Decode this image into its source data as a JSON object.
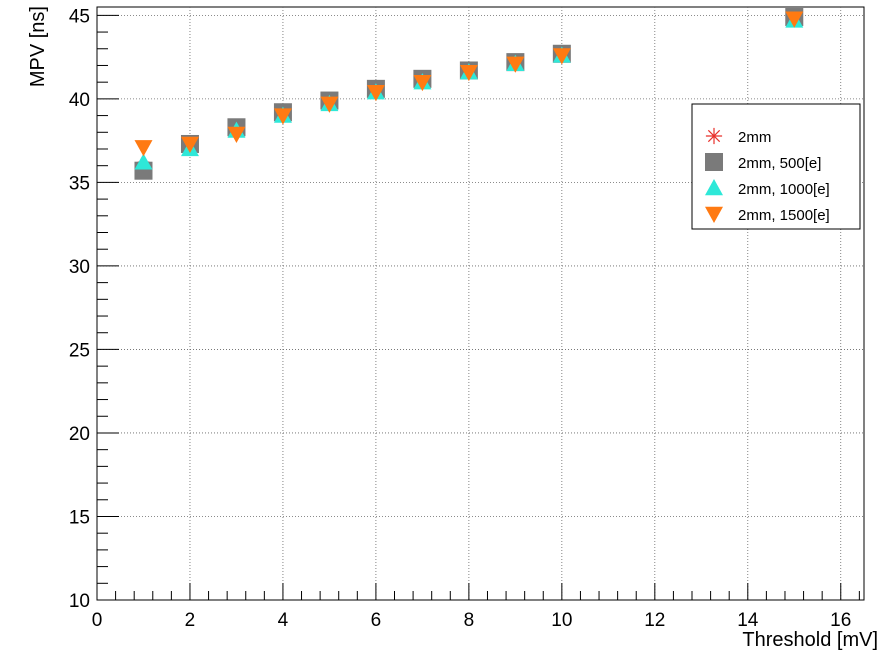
{
  "chart_data": {
    "type": "scatter",
    "title": "",
    "xlabel": "Threshold [mV]",
    "ylabel": "MPV [ns]",
    "xlim": [
      0,
      16.5
    ],
    "ylim": [
      10,
      45.5
    ],
    "xticks": [
      0,
      2,
      4,
      6,
      8,
      10,
      12,
      14,
      16
    ],
    "yticks": [
      10,
      15,
      20,
      25,
      30,
      35,
      40,
      45
    ],
    "grid": true,
    "legend_position": "right",
    "series": [
      {
        "name": "2mm",
        "marker": "asterisk",
        "color": "#e8302a",
        "x": [
          1,
          2,
          3,
          4,
          5,
          6,
          7,
          8,
          9,
          10,
          15
        ],
        "y": [
          35.9,
          37.2,
          38.2,
          39.1,
          39.8,
          40.5,
          41.1,
          41.6,
          42.1,
          42.6,
          44.8
        ]
      },
      {
        "name": "2mm, 500[e]",
        "marker": "square",
        "color": "#7a7a7a",
        "x": [
          1,
          2,
          3,
          4,
          5,
          6,
          7,
          8,
          9,
          10,
          15
        ],
        "y": [
          35.7,
          37.3,
          38.3,
          39.2,
          39.9,
          40.6,
          41.2,
          41.7,
          42.2,
          42.7,
          44.9
        ]
      },
      {
        "name": "2mm, 1000[e]",
        "marker": "triangle-up",
        "color": "#2ee8d8",
        "x": [
          1,
          2,
          3,
          4,
          5,
          6,
          7,
          8,
          9,
          10,
          15
        ],
        "y": [
          36.2,
          37.0,
          38.1,
          39.0,
          39.7,
          40.4,
          41.0,
          41.6,
          42.1,
          42.6,
          44.7
        ]
      },
      {
        "name": "2mm, 1500[e]",
        "marker": "triangle-down",
        "color": "#ff7a12",
        "x": [
          1,
          2,
          3,
          4,
          5,
          6,
          7,
          8,
          9,
          10,
          15
        ],
        "y": [
          37.1,
          37.3,
          37.9,
          39.0,
          39.7,
          40.4,
          41.0,
          41.6,
          42.1,
          42.6,
          44.8
        ]
      }
    ]
  }
}
